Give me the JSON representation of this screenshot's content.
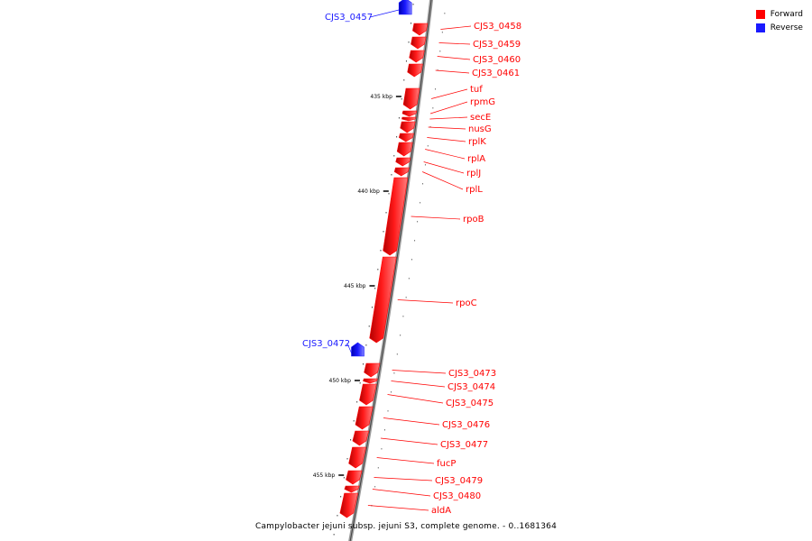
{
  "legend": {
    "forward_label": "Forward",
    "reverse_label": "Reverse",
    "forward_color": "#ff0000",
    "reverse_color": "#1a1aff"
  },
  "caption": "Campylobacter jejuni subsp. jejuni S3, complete genome. - 0..1681364",
  "scale_ticks": [
    {
      "kbp": 435,
      "label": "435 kbp"
    },
    {
      "kbp": 440,
      "label": "440 kbp"
    },
    {
      "kbp": 445,
      "label": "445 kbp"
    },
    {
      "kbp": 450,
      "label": "450 kbp"
    },
    {
      "kbp": 455,
      "label": "455 kbp"
    }
  ],
  "genes": [
    {
      "name": "CJS3_0457",
      "strand": "reverse"
    },
    {
      "name": "CJS3_0458",
      "strand": "forward"
    },
    {
      "name": "CJS3_0459",
      "strand": "forward"
    },
    {
      "name": "CJS3_0460",
      "strand": "forward"
    },
    {
      "name": "CJS3_0461",
      "strand": "forward"
    },
    {
      "name": "tuf",
      "strand": "forward"
    },
    {
      "name": "rpmG",
      "strand": "forward"
    },
    {
      "name": "secE",
      "strand": "forward"
    },
    {
      "name": "nusG",
      "strand": "forward"
    },
    {
      "name": "rplK",
      "strand": "forward"
    },
    {
      "name": "rplA",
      "strand": "forward"
    },
    {
      "name": "rplJ",
      "strand": "forward"
    },
    {
      "name": "rplL",
      "strand": "forward"
    },
    {
      "name": "rpoB",
      "strand": "forward"
    },
    {
      "name": "rpoC",
      "strand": "forward"
    },
    {
      "name": "CJS3_0472",
      "strand": "reverse"
    },
    {
      "name": "CJS3_0473",
      "strand": "forward"
    },
    {
      "name": "CJS3_0474",
      "strand": "forward"
    },
    {
      "name": "CJS3_0475",
      "strand": "forward"
    },
    {
      "name": "CJS3_0476",
      "strand": "forward"
    },
    {
      "name": "CJS3_0477",
      "strand": "forward"
    },
    {
      "name": "fucP",
      "strand": "forward"
    },
    {
      "name": "CJS3_0479",
      "strand": "forward"
    },
    {
      "name": "CJS3_0480",
      "strand": "forward"
    },
    {
      "name": "aldA",
      "strand": "forward"
    }
  ]
}
